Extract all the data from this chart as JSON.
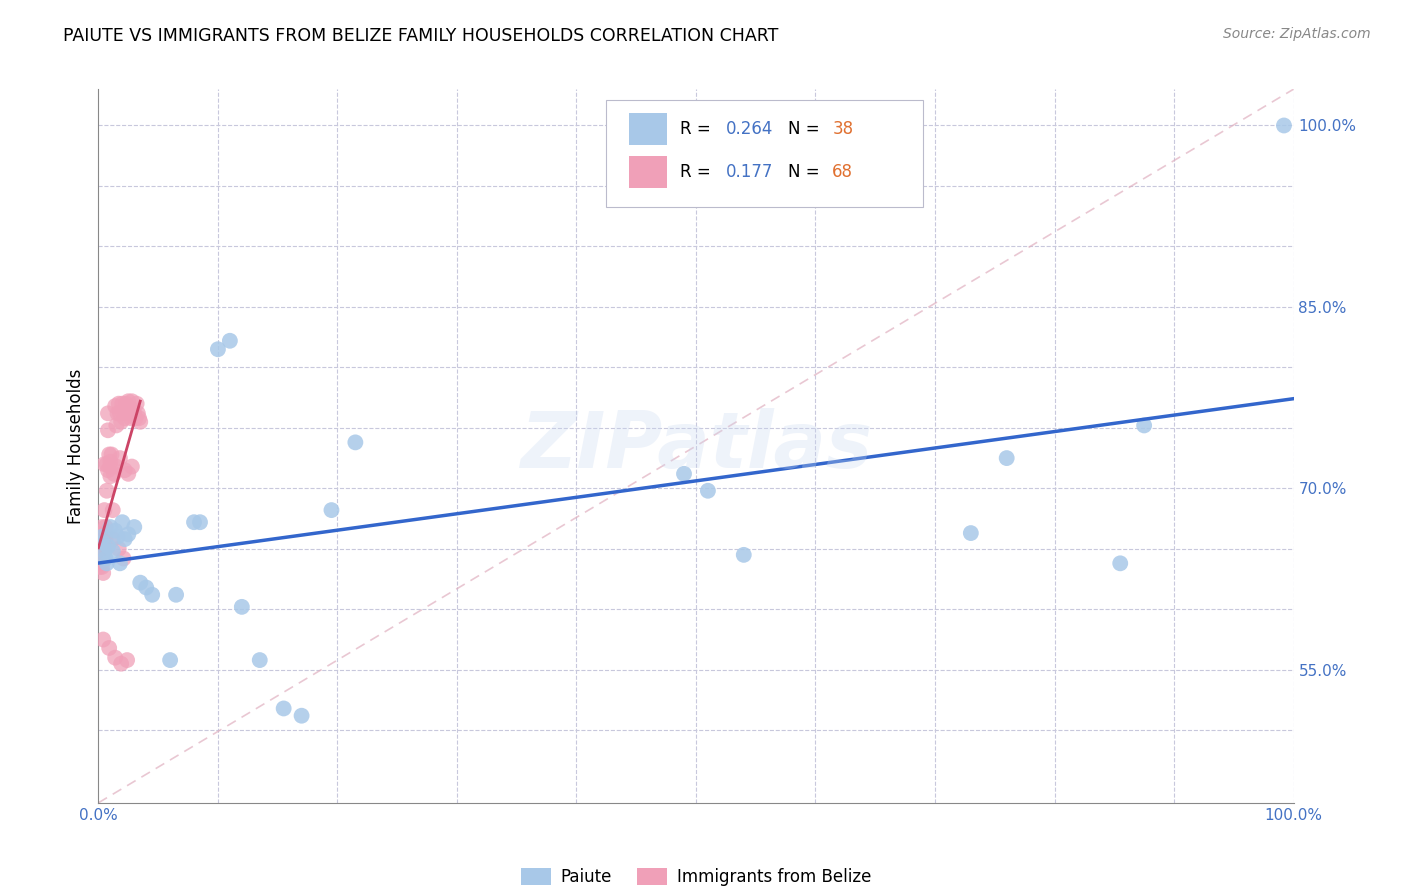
{
  "title": "PAIUTE VS IMMIGRANTS FROM BELIZE FAMILY HOUSEHOLDS CORRELATION CHART",
  "source": "Source: ZipAtlas.com",
  "ylabel": "Family Households",
  "xlim": [
    0.0,
    1.0
  ],
  "ylim": [
    0.44,
    1.03
  ],
  "paiute_color": "#a8c8e8",
  "belize_color": "#f0a0b8",
  "paiute_line_color": "#3366cc",
  "belize_line_color": "#cc4466",
  "diagonal_color": "#e0b0c0",
  "watermark": "ZIPatlas",
  "legend_label1": "Paiute",
  "legend_label2": "Immigrants from Belize",
  "paiute_x": [
    0.003,
    0.004,
    0.005,
    0.006,
    0.007,
    0.008,
    0.01,
    0.012,
    0.014,
    0.016,
    0.018,
    0.02,
    0.022,
    0.025,
    0.03,
    0.035,
    0.04,
    0.045,
    0.06,
    0.065,
    0.08,
    0.085,
    0.1,
    0.11,
    0.12,
    0.135,
    0.155,
    0.17,
    0.195,
    0.215,
    0.49,
    0.51,
    0.54,
    0.73,
    0.76,
    0.855,
    0.875,
    0.992
  ],
  "paiute_y": [
    0.66,
    0.655,
    0.648,
    0.642,
    0.638,
    0.652,
    0.668,
    0.648,
    0.665,
    0.66,
    0.638,
    0.672,
    0.658,
    0.662,
    0.668,
    0.622,
    0.618,
    0.612,
    0.558,
    0.612,
    0.672,
    0.672,
    0.815,
    0.822,
    0.602,
    0.558,
    0.518,
    0.512,
    0.682,
    0.738,
    0.712,
    0.698,
    0.645,
    0.663,
    0.725,
    0.638,
    0.752,
    1.0
  ],
  "belize_x": [
    0.0,
    0.0,
    0.001,
    0.001,
    0.001,
    0.002,
    0.002,
    0.002,
    0.003,
    0.003,
    0.003,
    0.004,
    0.004,
    0.004,
    0.005,
    0.005,
    0.006,
    0.006,
    0.007,
    0.007,
    0.008,
    0.008,
    0.009,
    0.01,
    0.01,
    0.011,
    0.012,
    0.013,
    0.014,
    0.015,
    0.016,
    0.017,
    0.018,
    0.019,
    0.02,
    0.021,
    0.022,
    0.023,
    0.024,
    0.025,
    0.026,
    0.027,
    0.028,
    0.029,
    0.03,
    0.031,
    0.032,
    0.033,
    0.034,
    0.035,
    0.005,
    0.008,
    0.01,
    0.015,
    0.018,
    0.022,
    0.025,
    0.028,
    0.003,
    0.006,
    0.012,
    0.017,
    0.021,
    0.004,
    0.009,
    0.014,
    0.019,
    0.024
  ],
  "belize_y": [
    0.648,
    0.658,
    0.642,
    0.655,
    0.635,
    0.65,
    0.662,
    0.638,
    0.668,
    0.645,
    0.635,
    0.652,
    0.64,
    0.63,
    0.66,
    0.682,
    0.668,
    0.658,
    0.72,
    0.698,
    0.762,
    0.748,
    0.728,
    0.722,
    0.718,
    0.728,
    0.682,
    0.712,
    0.768,
    0.752,
    0.762,
    0.77,
    0.762,
    0.755,
    0.77,
    0.762,
    0.758,
    0.77,
    0.765,
    0.772,
    0.762,
    0.758,
    0.772,
    0.765,
    0.762,
    0.758,
    0.77,
    0.762,
    0.758,
    0.755,
    0.72,
    0.715,
    0.71,
    0.718,
    0.725,
    0.715,
    0.712,
    0.718,
    0.648,
    0.652,
    0.658,
    0.65,
    0.642,
    0.575,
    0.568,
    0.56,
    0.555,
    0.558
  ],
  "stat_r1": "0.264",
  "stat_n1": "38",
  "stat_r2": "0.177",
  "stat_n2": "68"
}
